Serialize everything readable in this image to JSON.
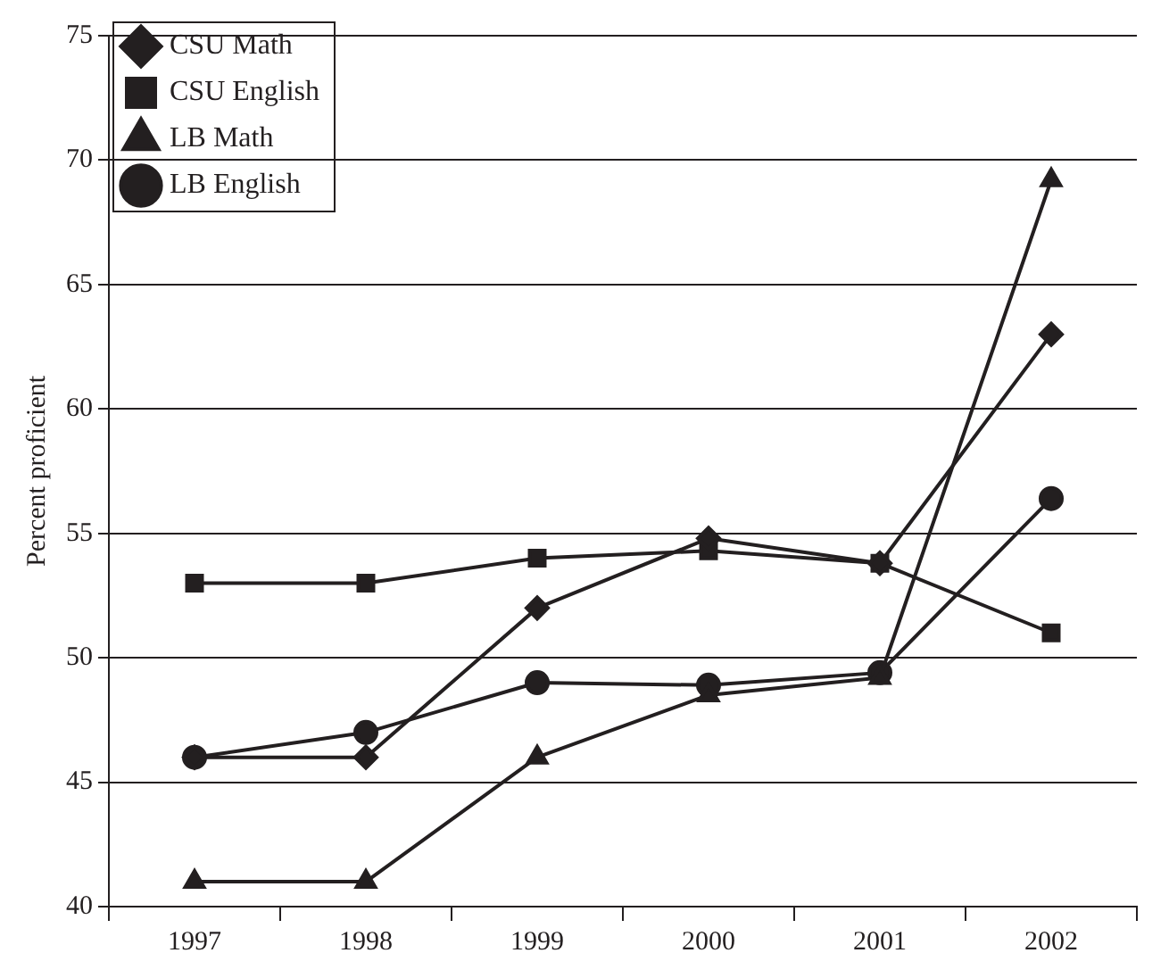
{
  "chart_data": {
    "type": "line",
    "ylabel": "Percent proficient",
    "categories": [
      "1997",
      "1998",
      "1999",
      "2000",
      "2001",
      "2002"
    ],
    "series": [
      {
        "name": "CSU Math",
        "color": "#231f20",
        "marker": "diamond",
        "values": [
          46,
          46,
          52,
          54.8,
          53.8,
          63
        ]
      },
      {
        "name": "CSU English",
        "color": "#231f20",
        "marker": "square",
        "values": [
          53,
          53,
          54,
          54.3,
          53.8,
          51
        ]
      },
      {
        "name": "LB Math",
        "color": "#231f20",
        "marker": "triangle",
        "values": [
          41,
          41,
          46,
          48.5,
          49.2,
          69.2
        ]
      },
      {
        "name": "LB English",
        "color": "#231f20",
        "marker": "circle",
        "values": [
          46,
          47,
          49,
          48.9,
          49.4,
          56.4
        ]
      }
    ],
    "ylim": [
      40,
      75
    ],
    "yticks": [
      40,
      45,
      50,
      55,
      60,
      65,
      70,
      75
    ],
    "grid": "y",
    "legend": "top left",
    "line_style": "solid"
  }
}
